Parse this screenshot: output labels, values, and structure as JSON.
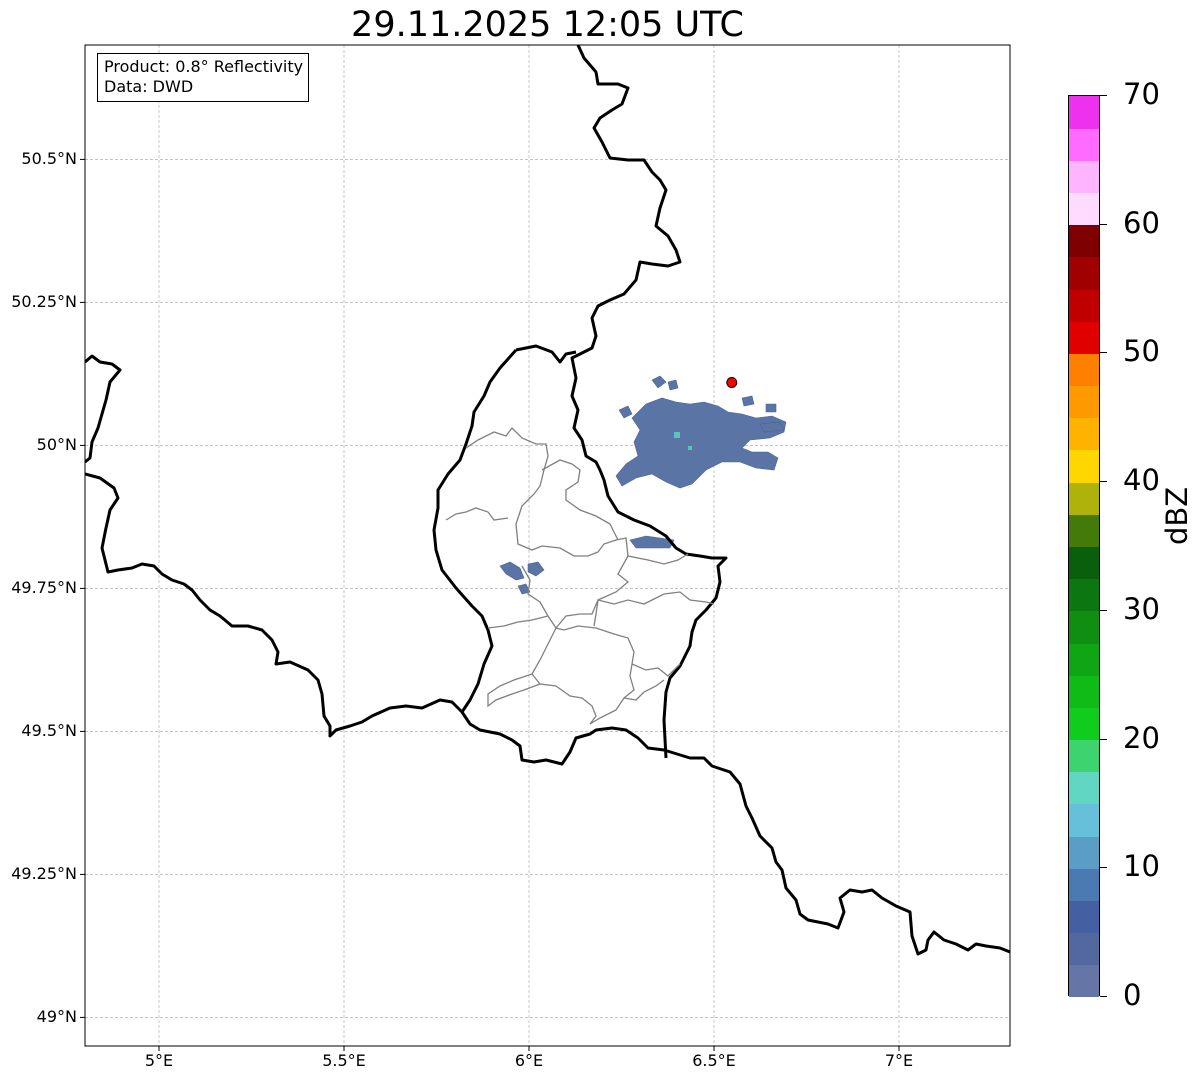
{
  "title": "29.11.2025 12:05 UTC",
  "info_box": {
    "product": "Product: 0.8° Reflectivity",
    "source": "Data: DWD"
  },
  "map": {
    "lon_range": [
      4.8,
      7.3
    ],
    "lat_range": [
      48.95,
      50.7
    ],
    "gridlines": true,
    "x_ticks": [
      "5°E",
      "5.5°E",
      "6°E",
      "6.5°E",
      "7°E"
    ],
    "y_ticks": [
      "49°N",
      "49.25°N",
      "49.5°N",
      "49.75°N",
      "50°N",
      "50.25°N",
      "50.5°N"
    ],
    "radar_site_marker": {
      "lon": 6.548,
      "lat": 50.11,
      "color": "#ff0000"
    }
  },
  "colorbar": {
    "label": "dBZ",
    "tick_labels": [
      "0",
      "10",
      "20",
      "30",
      "40",
      "50",
      "60",
      "70"
    ],
    "range": [
      0,
      70
    ],
    "colors": [
      "#6575a6",
      "#5468a0",
      "#4460a3",
      "#4b7ab3",
      "#5a9ec6",
      "#66c0da",
      "#61d6c2",
      "#3dd36f",
      "#10cc1c",
      "#11bb17",
      "#10a514",
      "#0f8e12",
      "#0c7610",
      "#095f0c",
      "#447a0a",
      "#aeb20b",
      "#ffd700",
      "#ffb200",
      "#ff9900",
      "#ff7f00",
      "#e00000",
      "#c00000",
      "#a00000",
      "#7f0000",
      "#ffdcff",
      "#ffb4ff",
      "#ff6aff",
      "#ee31ee"
    ]
  }
}
